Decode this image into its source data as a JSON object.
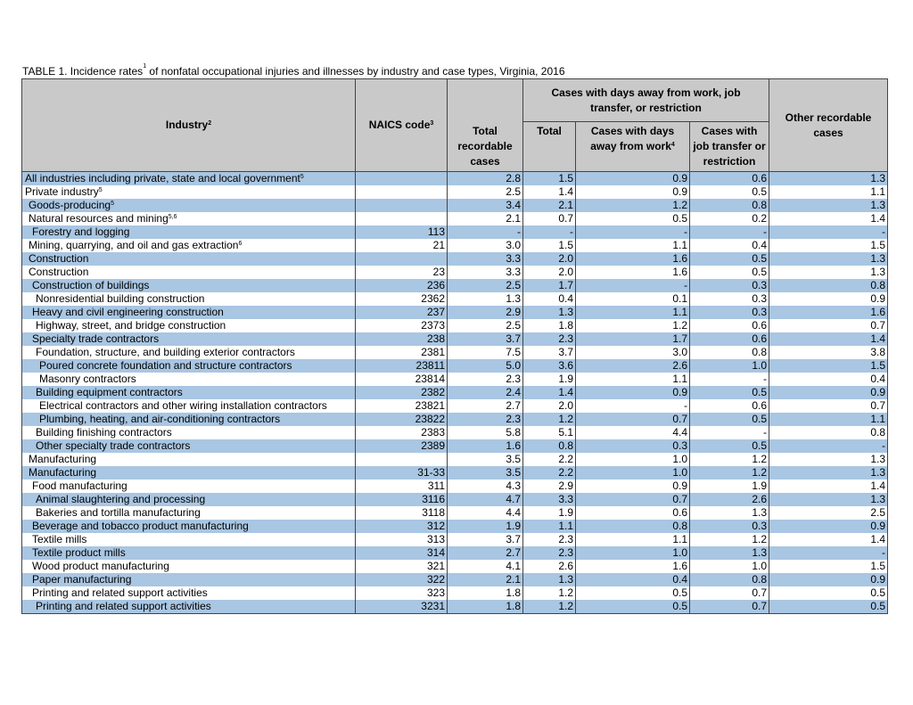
{
  "title": {
    "before": "TABLE 1. Incidence rates",
    "sup": "1",
    "after": " of nonfatal occupational injuries and illnesses by industry and case types, Virginia, 2016"
  },
  "header": {
    "industry": "Industry",
    "industry_sup": "2",
    "naics": "NAICS code",
    "naics_sup": "3",
    "total_recordable": "Total recordable cases",
    "group": "Cases with days away from work, job transfer, or restriction",
    "group_total": "Total",
    "days_away": "Cases with days away from work",
    "days_away_sup": "4",
    "transfer": "Cases with job transfer or restriction",
    "other": "Other recordable cases"
  },
  "table": {
    "rows": [
      {
        "industry": "All industries including private, state and local government",
        "sup": "5",
        "cells": [
          null,
          "2.8",
          "1.5",
          "0.9",
          "0.6",
          "1.3"
        ]
      },
      {
        "industry": "Private industry",
        "sup": "5",
        "cells": [
          null,
          "2.5",
          "1.4",
          "0.9",
          "0.5",
          "1.1"
        ]
      },
      {
        "industry": "Goods-producing",
        "sup": "5",
        "cells": [
          null,
          "3.4",
          "2.1",
          "1.2",
          "0.8",
          "1.3"
        ]
      },
      {
        "industry": "Natural resources and mining",
        "sup": "5,6",
        "cells": [
          null,
          "2.1",
          "0.7",
          "0.5",
          "0.2",
          "1.4"
        ]
      },
      {
        "industry": "Forestry and logging",
        "cells": [
          "113",
          "-",
          "-",
          "-",
          "-",
          "-"
        ]
      },
      {
        "industry": "Mining, quarrying, and oil and gas extraction",
        "sup": "6",
        "cells": [
          "21",
          "3.0",
          "1.5",
          "1.1",
          "0.4",
          "1.5"
        ]
      },
      {
        "industry": "Construction",
        "cells": [
          null,
          "3.3",
          "2.0",
          "1.6",
          "0.5",
          "1.3"
        ]
      },
      {
        "industry": "Construction",
        "cells": [
          "23",
          "3.3",
          "2.0",
          "1.6",
          "0.5",
          "1.3"
        ]
      },
      {
        "industry": "Construction of buildings",
        "cells": [
          "236",
          "2.5",
          "1.7",
          "-",
          "0.3",
          "0.8"
        ]
      },
      {
        "industry": "Nonresidential building construction",
        "cells": [
          "2362",
          "1.3",
          "0.4",
          "0.1",
          "0.3",
          "0.9"
        ]
      },
      {
        "industry": "Heavy and civil engineering construction",
        "cells": [
          "237",
          "2.9",
          "1.3",
          "1.1",
          "0.3",
          "1.6"
        ]
      },
      {
        "industry": "Highway, street, and bridge construction",
        "cells": [
          "2373",
          "2.5",
          "1.8",
          "1.2",
          "0.6",
          "0.7"
        ]
      },
      {
        "industry": "Specialty trade contractors",
        "cells": [
          "238",
          "3.7",
          "2.3",
          "1.7",
          "0.6",
          "1.4"
        ]
      },
      {
        "industry": "Foundation, structure, and building exterior contractors",
        "cells": [
          "2381",
          "7.5",
          "3.7",
          "3.0",
          "0.8",
          "3.8"
        ]
      },
      {
        "industry": "Poured concrete foundation and structure contractors",
        "cells": [
          "23811",
          "5.0",
          "3.6",
          "2.6",
          "1.0",
          "1.5"
        ]
      },
      {
        "industry": "Masonry contractors",
        "cells": [
          "23814",
          "2.3",
          "1.9",
          "1.1",
          "-",
          "0.4"
        ]
      },
      {
        "industry": "Building equipment contractors",
        "cells": [
          "2382",
          "2.4",
          "1.4",
          "0.9",
          "0.5",
          "0.9"
        ]
      },
      {
        "industry": "Electrical contractors and other wiring installation contractors",
        "cells": [
          "23821",
          "2.7",
          "2.0",
          "-",
          "0.6",
          "0.7"
        ]
      },
      {
        "industry": "Plumbing, heating, and air-conditioning contractors",
        "cells": [
          "23822",
          "2.3",
          "1.2",
          "0.7",
          "0.5",
          "1.1"
        ]
      },
      {
        "industry": "Building finishing contractors",
        "cells": [
          "2383",
          "5.8",
          "5.1",
          "4.4",
          "-",
          "0.8"
        ]
      },
      {
        "industry": "Other specialty trade contractors",
        "cells": [
          "2389",
          "1.6",
          "0.8",
          "0.3",
          "0.5",
          "-"
        ]
      },
      {
        "industry": "Manufacturing",
        "cells": [
          null,
          "3.5",
          "2.2",
          "1.0",
          "1.2",
          "1.3"
        ]
      },
      {
        "industry": "Manufacturing",
        "cells": [
          "31-33",
          "3.5",
          "2.2",
          "1.0",
          "1.2",
          "1.3"
        ]
      },
      {
        "industry": "Food manufacturing",
        "cells": [
          "311",
          "4.3",
          "2.9",
          "0.9",
          "1.9",
          "1.4"
        ]
      },
      {
        "industry": "Animal slaughtering and processing",
        "cells": [
          "3116",
          "4.7",
          "3.3",
          "0.7",
          "2.6",
          "1.3"
        ]
      },
      {
        "industry": "Bakeries and tortilla manufacturing",
        "cells": [
          "3118",
          "4.4",
          "1.9",
          "0.6",
          "1.3",
          "2.5"
        ]
      },
      {
        "industry": "Beverage and tobacco product manufacturing",
        "cells": [
          "312",
          "1.9",
          "1.1",
          "0.8",
          "0.3",
          "0.9"
        ]
      },
      {
        "industry": "Textile mills",
        "cells": [
          "313",
          "3.7",
          "2.3",
          "1.1",
          "1.2",
          "1.4"
        ]
      },
      {
        "industry": "Textile product mills",
        "cells": [
          "314",
          "2.7",
          "2.3",
          "1.0",
          "1.3",
          "-"
        ]
      },
      {
        "industry": "Wood product manufacturing",
        "cells": [
          "321",
          "4.1",
          "2.6",
          "1.6",
          "1.0",
          "1.5"
        ]
      },
      {
        "industry": "Paper manufacturing",
        "cells": [
          "322",
          "2.1",
          "1.3",
          "0.4",
          "0.8",
          "0.9"
        ]
      },
      {
        "industry": "Printing and related support activities",
        "cells": [
          "323",
          "1.8",
          "1.2",
          "0.5",
          "0.7",
          "0.5"
        ]
      },
      {
        "industry": "Printing and related support activities",
        "cells": [
          "3231",
          "1.8",
          "1.2",
          "0.5",
          "0.7",
          "0.5"
        ]
      }
    ]
  }
}
